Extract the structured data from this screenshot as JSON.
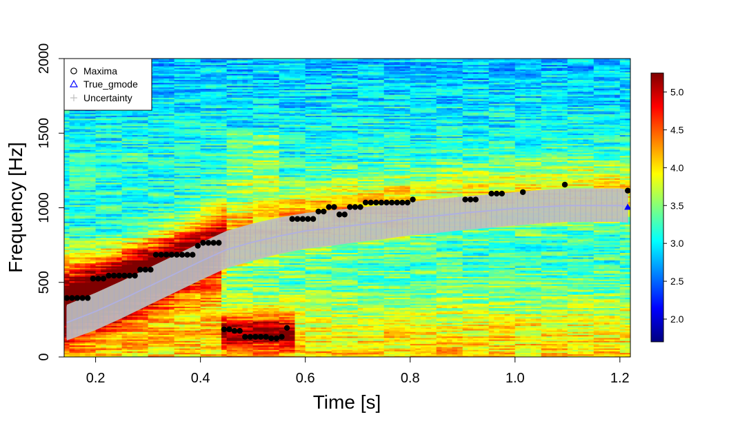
{
  "chart_data": {
    "type": "heatmap",
    "title": "",
    "xlabel": "Time [s]",
    "ylabel": "Frequency [Hz]",
    "xlim": [
      0.14,
      1.22
    ],
    "ylim": [
      0,
      2000
    ],
    "x_ticks": [
      "0.2",
      "0.4",
      "0.6",
      "0.8",
      "1.0",
      "1.2"
    ],
    "x_tick_values": [
      0.2,
      0.4,
      0.6,
      0.8,
      1.0,
      1.2
    ],
    "y_ticks": [
      "0",
      "500",
      "1000",
      "1500",
      "2000"
    ],
    "y_tick_values": [
      0,
      500,
      1000,
      1500,
      2000
    ],
    "colorbar": {
      "range": [
        1.7,
        5.25
      ],
      "ticks": [
        "2.0",
        "2.5",
        "3.0",
        "3.5",
        "4.0",
        "4.5",
        "5.0"
      ],
      "tick_values": [
        2.0,
        2.5,
        3.0,
        3.5,
        4.0,
        4.5,
        5.0
      ],
      "colormap": [
        "#00007f",
        "#0000ff",
        "#007fff",
        "#00ffff",
        "#7fff7f",
        "#ffff00",
        "#ff7f00",
        "#ff0000",
        "#7f0000"
      ]
    },
    "legend": {
      "placement": "top-left",
      "entries": [
        {
          "label": "Maxima",
          "symbol": "open-circle",
          "color": "#000000"
        },
        {
          "label": "True_gmode",
          "symbol": "open-triangle",
          "color": "#0000ff"
        },
        {
          "label": "Uncertainty",
          "symbol": "plus",
          "color": "#bebebe"
        }
      ]
    },
    "series": [
      {
        "name": "Maxima",
        "color": "#000000",
        "points": [
          [
            0.145,
            395
          ],
          [
            0.155,
            395
          ],
          [
            0.165,
            395
          ],
          [
            0.175,
            395
          ],
          [
            0.185,
            395
          ],
          [
            0.195,
            525
          ],
          [
            0.205,
            525
          ],
          [
            0.215,
            525
          ],
          [
            0.225,
            545
          ],
          [
            0.235,
            545
          ],
          [
            0.245,
            545
          ],
          [
            0.255,
            545
          ],
          [
            0.265,
            545
          ],
          [
            0.275,
            545
          ],
          [
            0.285,
            585
          ],
          [
            0.295,
            585
          ],
          [
            0.305,
            585
          ],
          [
            0.315,
            685
          ],
          [
            0.325,
            685
          ],
          [
            0.335,
            685
          ],
          [
            0.345,
            685
          ],
          [
            0.355,
            685
          ],
          [
            0.365,
            685
          ],
          [
            0.375,
            685
          ],
          [
            0.385,
            685
          ],
          [
            0.395,
            745
          ],
          [
            0.405,
            765
          ],
          [
            0.415,
            765
          ],
          [
            0.425,
            765
          ],
          [
            0.435,
            765
          ],
          [
            0.445,
            185
          ],
          [
            0.455,
            185
          ],
          [
            0.465,
            175
          ],
          [
            0.475,
            175
          ],
          [
            0.485,
            135
          ],
          [
            0.495,
            135
          ],
          [
            0.505,
            135
          ],
          [
            0.515,
            135
          ],
          [
            0.525,
            135
          ],
          [
            0.535,
            125
          ],
          [
            0.545,
            125
          ],
          [
            0.555,
            135
          ],
          [
            0.565,
            195
          ],
          [
            0.575,
            925
          ],
          [
            0.585,
            925
          ],
          [
            0.595,
            925
          ],
          [
            0.605,
            925
          ],
          [
            0.615,
            925
          ],
          [
            0.625,
            975
          ],
          [
            0.635,
            975
          ],
          [
            0.645,
            1005
          ],
          [
            0.655,
            1005
          ],
          [
            0.665,
            955
          ],
          [
            0.675,
            955
          ],
          [
            0.685,
            1005
          ],
          [
            0.695,
            1005
          ],
          [
            0.705,
            1005
          ],
          [
            0.715,
            1035
          ],
          [
            0.725,
            1035
          ],
          [
            0.735,
            1035
          ],
          [
            0.745,
            1035
          ],
          [
            0.755,
            1035
          ],
          [
            0.765,
            1035
          ],
          [
            0.775,
            1035
          ],
          [
            0.785,
            1035
          ],
          [
            0.795,
            1035
          ],
          [
            0.805,
            1055
          ],
          [
            0.905,
            1055
          ],
          [
            0.915,
            1055
          ],
          [
            0.925,
            1055
          ],
          [
            0.955,
            1095
          ],
          [
            0.965,
            1095
          ],
          [
            0.975,
            1095
          ],
          [
            1.015,
            1105
          ],
          [
            1.095,
            1155
          ],
          [
            1.215,
            1115
          ]
        ]
      },
      {
        "name": "True_gmode",
        "color": "#0000ff",
        "points": [
          [
            0.145,
            230
          ],
          [
            0.2,
            305
          ],
          [
            0.25,
            385
          ],
          [
            0.3,
            470
          ],
          [
            0.35,
            555
          ],
          [
            0.4,
            640
          ],
          [
            0.45,
            720
          ],
          [
            0.5,
            770
          ],
          [
            0.55,
            810
          ],
          [
            0.6,
            845
          ],
          [
            0.65,
            865
          ],
          [
            0.7,
            885
          ],
          [
            0.75,
            905
          ],
          [
            0.8,
            930
          ],
          [
            0.85,
            945
          ],
          [
            0.9,
            965
          ],
          [
            0.95,
            980
          ],
          [
            1.0,
            995
          ],
          [
            1.05,
            1005
          ],
          [
            1.1,
            1015
          ],
          [
            1.15,
            1015
          ],
          [
            1.2,
            1015
          ],
          [
            1.215,
            1005
          ]
        ]
      },
      {
        "name": "Uncertainty",
        "color": "#bebebe",
        "band_lower": [
          [
            0.145,
            110
          ],
          [
            0.2,
            180
          ],
          [
            0.25,
            260
          ],
          [
            0.3,
            345
          ],
          [
            0.35,
            430
          ],
          [
            0.4,
            515
          ],
          [
            0.45,
            595
          ],
          [
            0.5,
            645
          ],
          [
            0.55,
            690
          ],
          [
            0.6,
            725
          ],
          [
            0.65,
            745
          ],
          [
            0.7,
            770
          ],
          [
            0.75,
            790
          ],
          [
            0.8,
            815
          ],
          [
            0.85,
            830
          ],
          [
            0.9,
            850
          ],
          [
            0.95,
            865
          ],
          [
            1.0,
            880
          ],
          [
            1.05,
            895
          ],
          [
            1.1,
            905
          ],
          [
            1.15,
            905
          ],
          [
            1.2,
            905
          ],
          [
            1.215,
            900
          ]
        ],
        "band_upper": [
          [
            0.145,
            350
          ],
          [
            0.2,
            430
          ],
          [
            0.25,
            510
          ],
          [
            0.3,
            595
          ],
          [
            0.35,
            680
          ],
          [
            0.4,
            765
          ],
          [
            0.45,
            845
          ],
          [
            0.5,
            895
          ],
          [
            0.55,
            935
          ],
          [
            0.6,
            965
          ],
          [
            0.65,
            985
          ],
          [
            0.7,
            1000
          ],
          [
            0.75,
            1020
          ],
          [
            0.8,
            1040
          ],
          [
            0.85,
            1060
          ],
          [
            0.9,
            1075
          ],
          [
            0.95,
            1090
          ],
          [
            1.0,
            1105
          ],
          [
            1.05,
            1120
          ],
          [
            1.1,
            1130
          ],
          [
            1.15,
            1130
          ],
          [
            1.2,
            1130
          ],
          [
            1.215,
            1120
          ]
        ]
      }
    ]
  }
}
